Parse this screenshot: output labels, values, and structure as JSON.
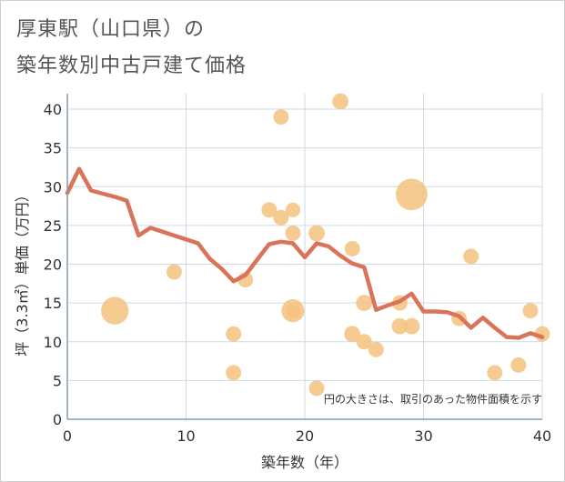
{
  "title_line1": "厚東駅（山口県）の",
  "title_line2": "築年数別中古戸建て価格",
  "chart_data": {
    "type": "scatter",
    "title": "厚東駅（山口県）の築年数別中古戸建て価格",
    "xlabel": "築年数（年）",
    "ylabel": "坪（3.3㎡）単価（万円）",
    "xlim": [
      0,
      40
    ],
    "ylim": [
      0,
      42
    ],
    "xticks": [
      0,
      10,
      20,
      30,
      40
    ],
    "yticks": [
      0,
      5,
      10,
      15,
      20,
      25,
      30,
      35,
      40
    ],
    "grid": true,
    "annotation": "円の大きさは、取引のあった物件面積を示す",
    "colors": {
      "bubble": "#f4c27f",
      "line": "#d9735a",
      "grid": "#cfd9e6",
      "axis": "#8a9bb0"
    },
    "bubbles": [
      {
        "x": 4,
        "y": 14,
        "size": 3.2
      },
      {
        "x": 9,
        "y": 19,
        "size": 1
      },
      {
        "x": 14,
        "y": 11,
        "size": 1
      },
      {
        "x": 14,
        "y": 6,
        "size": 1
      },
      {
        "x": 15,
        "y": 18,
        "size": 1
      },
      {
        "x": 17,
        "y": 27,
        "size": 1
      },
      {
        "x": 18,
        "y": 39,
        "size": 1
      },
      {
        "x": 18,
        "y": 26,
        "size": 1
      },
      {
        "x": 19,
        "y": 27,
        "size": 0.9
      },
      {
        "x": 19,
        "y": 24,
        "size": 1
      },
      {
        "x": 19,
        "y": 14,
        "size": 2.2
      },
      {
        "x": 19,
        "y": 14,
        "size": 0.9
      },
      {
        "x": 21,
        "y": 24,
        "size": 1.1
      },
      {
        "x": 21,
        "y": 4,
        "size": 1
      },
      {
        "x": 23,
        "y": 41,
        "size": 1.1
      },
      {
        "x": 24,
        "y": 22,
        "size": 1
      },
      {
        "x": 24,
        "y": 11,
        "size": 1.1
      },
      {
        "x": 25,
        "y": 15,
        "size": 1.1
      },
      {
        "x": 25,
        "y": 10,
        "size": 1
      },
      {
        "x": 26,
        "y": 9,
        "size": 1
      },
      {
        "x": 28,
        "y": 15,
        "size": 1
      },
      {
        "x": 28,
        "y": 12,
        "size": 1.1
      },
      {
        "x": 29,
        "y": 12,
        "size": 1.1
      },
      {
        "x": 29,
        "y": 29,
        "size": 4.2
      },
      {
        "x": 33,
        "y": 13,
        "size": 1
      },
      {
        "x": 34,
        "y": 21,
        "size": 1
      },
      {
        "x": 36,
        "y": 6,
        "size": 1
      },
      {
        "x": 38,
        "y": 7,
        "size": 1
      },
      {
        "x": 39,
        "y": 14,
        "size": 1
      },
      {
        "x": 40,
        "y": 11,
        "size": 1
      }
    ],
    "trend": {
      "x": [
        0,
        1,
        2,
        3,
        4,
        5,
        6,
        7,
        8,
        9,
        10,
        11,
        12,
        13,
        14,
        15,
        16,
        17,
        18,
        19,
        20,
        21,
        22,
        23,
        24,
        25,
        26,
        27,
        28,
        29,
        30,
        31,
        32,
        33,
        34,
        35,
        36,
        37,
        38,
        39,
        40
      ],
      "y": [
        29.2,
        32.3,
        29.5,
        29.1,
        28.7,
        28.2,
        23.7,
        24.7,
        24.2,
        23.7,
        23.2,
        22.7,
        20.7,
        19.4,
        17.8,
        18.6,
        20.6,
        22.6,
        22.9,
        22.7,
        20.9,
        22.7,
        22.3,
        21.1,
        20.1,
        19.6,
        14.1,
        14.7,
        15.2,
        16.2,
        13.9,
        13.9,
        13.8,
        13.3,
        11.8,
        13.1,
        11.8,
        10.6,
        10.5,
        11.1,
        10.6
      ]
    }
  }
}
